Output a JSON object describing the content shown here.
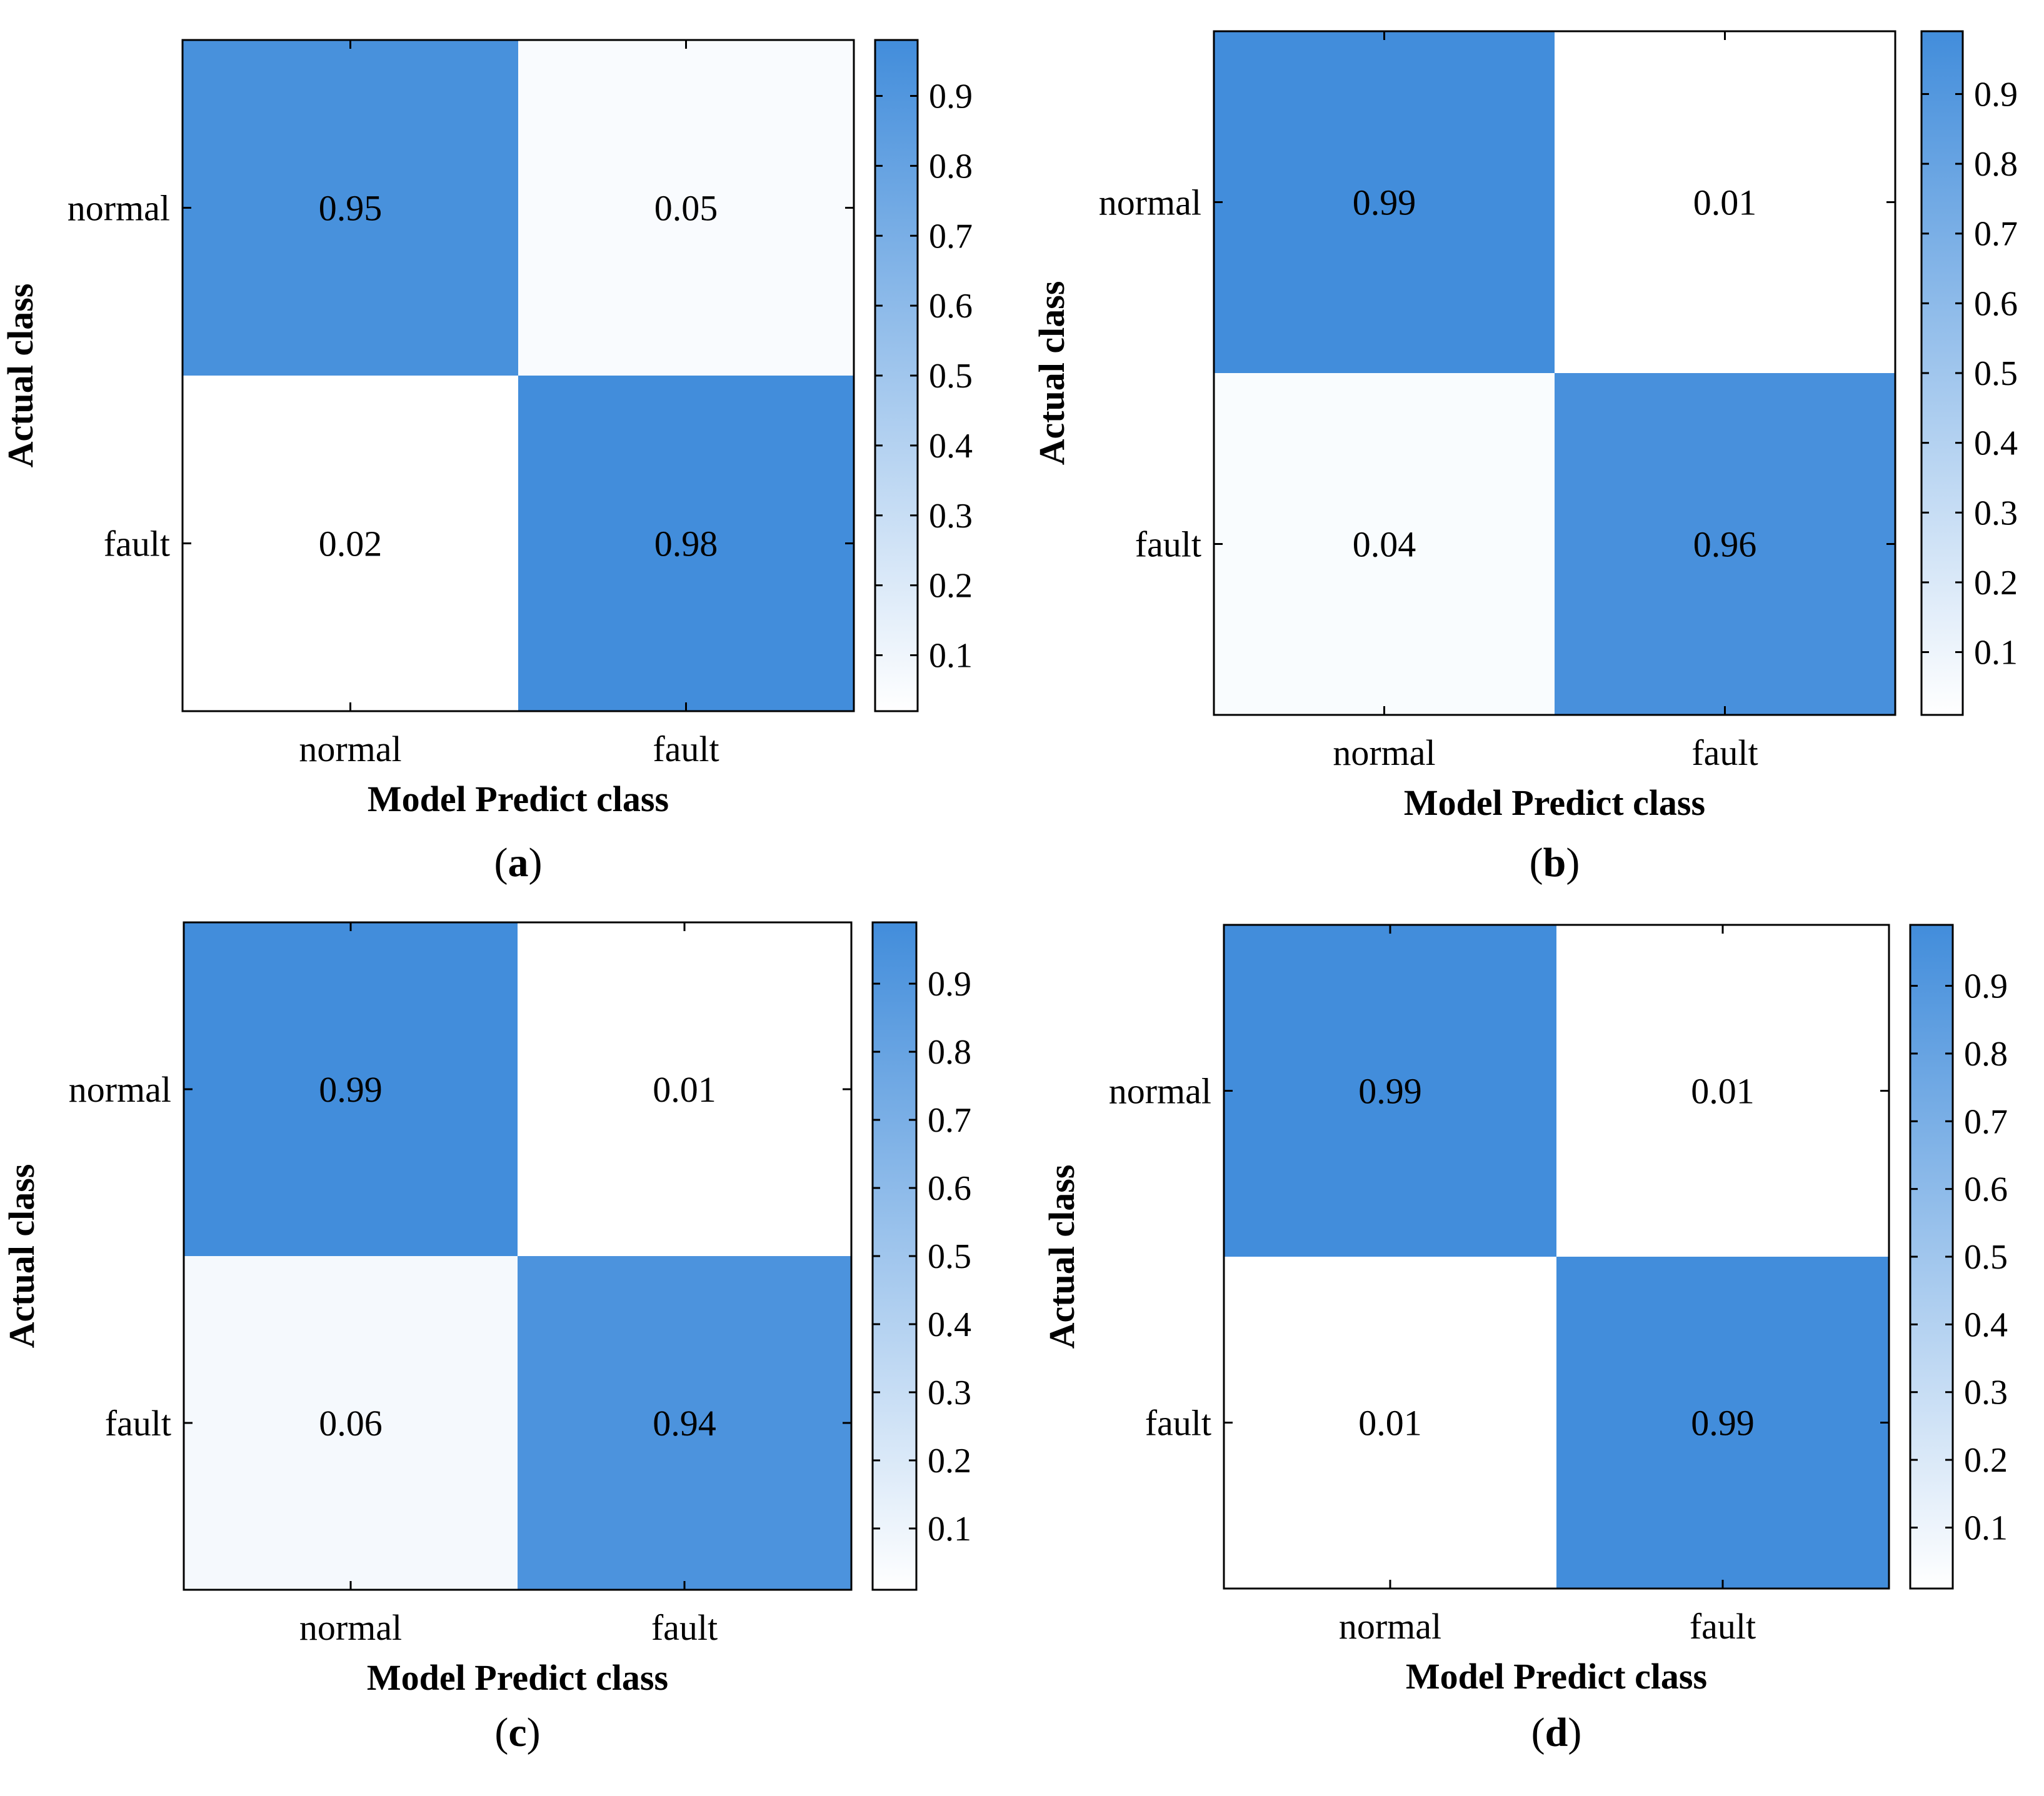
{
  "chart_data": [
    {
      "type": "heatmap",
      "panel_label": "a",
      "x_categories": [
        "normal",
        "fault"
      ],
      "y_categories": [
        "normal",
        "fault"
      ],
      "values": [
        [
          0.95,
          0.05
        ],
        [
          0.02,
          0.98
        ]
      ],
      "xlabel": "Model Predict class",
      "ylabel": "Actual class",
      "colorbar": {
        "ticks": [
          "0.1",
          "0.2",
          "0.3",
          "0.4",
          "0.5",
          "0.6",
          "0.7",
          "0.8",
          "0.9"
        ],
        "range": [
          0.02,
          0.98
        ],
        "low_color": "#ffffff",
        "high_color": "#428ddb"
      }
    },
    {
      "type": "heatmap",
      "panel_label": "b",
      "x_categories": [
        "normal",
        "fault"
      ],
      "y_categories": [
        "normal",
        "fault"
      ],
      "values": [
        [
          0.99,
          0.01
        ],
        [
          0.04,
          0.96
        ]
      ],
      "xlabel": "Model Predict class",
      "ylabel": "Actual class",
      "colorbar": {
        "ticks": [
          "0.1",
          "0.2",
          "0.3",
          "0.4",
          "0.5",
          "0.6",
          "0.7",
          "0.8",
          "0.9"
        ],
        "range": [
          0.01,
          0.99
        ],
        "low_color": "#ffffff",
        "high_color": "#428ddb"
      }
    },
    {
      "type": "heatmap",
      "panel_label": "c",
      "x_categories": [
        "normal",
        "fault"
      ],
      "y_categories": [
        "normal",
        "fault"
      ],
      "values": [
        [
          0.99,
          0.01
        ],
        [
          0.06,
          0.94
        ]
      ],
      "xlabel": "Model Predict class",
      "ylabel": "Actual class",
      "colorbar": {
        "ticks": [
          "0.1",
          "0.2",
          "0.3",
          "0.4",
          "0.5",
          "0.6",
          "0.7",
          "0.8",
          "0.9"
        ],
        "range": [
          0.01,
          0.99
        ],
        "low_color": "#ffffff",
        "high_color": "#428ddb"
      }
    },
    {
      "type": "heatmap",
      "panel_label": "d",
      "x_categories": [
        "normal",
        "fault"
      ],
      "y_categories": [
        "normal",
        "fault"
      ],
      "values": [
        [
          0.99,
          0.01
        ],
        [
          0.01,
          0.99
        ]
      ],
      "xlabel": "Model Predict class",
      "ylabel": "Actual class",
      "colorbar": {
        "ticks": [
          "0.1",
          "0.2",
          "0.3",
          "0.4",
          "0.5",
          "0.6",
          "0.7",
          "0.8",
          "0.9"
        ],
        "range": [
          0.01,
          0.99
        ],
        "low_color": "#ffffff",
        "high_color": "#428ddb"
      }
    }
  ]
}
